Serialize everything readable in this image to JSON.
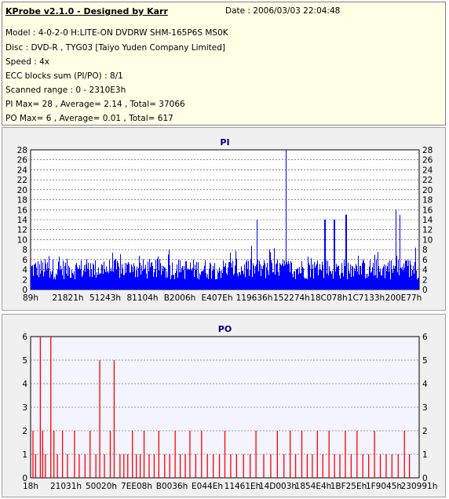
{
  "header": {
    "title": "KProbe v2.1.0 - Designed by Karr",
    "date": "Date : 2006/03/03 22:04:48",
    "model": "Model : 4-0-2-0 H:LITE-ON DVDRW SHM-165P6S MS0K",
    "disc": "Disc : DVD-R , TYG03 [Taiyo Yuden Company Limited]",
    "speed": "Speed : 4x",
    "ecc": "ECC blocks sum (PI/PO) : 8/1",
    "range": "Scanned range : 0 - 2310E3h",
    "pi_stats": "PI Max= 28 , Average= 2.14 , Total= 37066",
    "po_stats": "PO Max= 6 , Average= 0.01 , Total= 617"
  },
  "colors": {
    "pi_bars": "#0000ff",
    "po_bars": "#ff0000",
    "plot_bg": "#ffffff",
    "po_plot_bg": "#f4f4ff",
    "title": "#000080"
  },
  "chart_data": [
    {
      "type": "bar",
      "title": "PI",
      "ylim": [
        0,
        28
      ],
      "yticks": [
        0,
        2,
        4,
        6,
        8,
        10,
        12,
        14,
        16,
        18,
        20,
        22,
        24,
        26,
        28
      ],
      "xtick_labels": [
        "89h",
        "21821h",
        "51243h",
        "81104h",
        "B2006h",
        "E407Eh",
        "119636h",
        "152274h",
        "18C078h",
        "1C7133h",
        "200E77h"
      ],
      "grid": true,
      "peaks": [
        {
          "pos": 0.657,
          "value": 28
        },
        {
          "pos": 0.939,
          "value": 16
        },
        {
          "pos": 0.949,
          "value": 15
        },
        {
          "pos": 0.582,
          "value": 14
        },
        {
          "pos": 0.757,
          "value": 14
        },
        {
          "pos": 0.781,
          "value": 14
        },
        {
          "pos": 0.811,
          "value": 15
        }
      ],
      "baseline": {
        "typical_min": 2,
        "typical_max": 8
      }
    },
    {
      "type": "bar",
      "title": "PO",
      "ylim": [
        0,
        6
      ],
      "yticks": [
        0,
        1,
        2,
        3,
        4,
        5,
        6
      ],
      "xtick_labels": [
        "18h",
        "21031h",
        "50020h",
        "7EE08h",
        "B0036h",
        "E044Eh",
        "11461Eh",
        "14D003h",
        "1854E4h",
        "1BF25Eh",
        "1F9045h",
        "230991h"
      ],
      "grid": true,
      "bars": [
        {
          "pos": 0.006,
          "value": 2
        },
        {
          "pos": 0.013,
          "value": 1
        },
        {
          "pos": 0.025,
          "value": 6
        },
        {
          "pos": 0.031,
          "value": 2
        },
        {
          "pos": 0.038,
          "value": 1
        },
        {
          "pos": 0.052,
          "value": 6
        },
        {
          "pos": 0.06,
          "value": 2
        },
        {
          "pos": 0.069,
          "value": 1
        },
        {
          "pos": 0.082,
          "value": 2
        },
        {
          "pos": 0.095,
          "value": 1
        },
        {
          "pos": 0.113,
          "value": 2
        },
        {
          "pos": 0.125,
          "value": 1
        },
        {
          "pos": 0.14,
          "value": 1
        },
        {
          "pos": 0.153,
          "value": 2
        },
        {
          "pos": 0.168,
          "value": 1
        },
        {
          "pos": 0.178,
          "value": 5
        },
        {
          "pos": 0.19,
          "value": 1
        },
        {
          "pos": 0.205,
          "value": 2
        },
        {
          "pos": 0.215,
          "value": 5
        },
        {
          "pos": 0.23,
          "value": 1
        },
        {
          "pos": 0.24,
          "value": 1
        },
        {
          "pos": 0.25,
          "value": 1
        },
        {
          "pos": 0.262,
          "value": 2
        },
        {
          "pos": 0.272,
          "value": 1
        },
        {
          "pos": 0.282,
          "value": 1
        },
        {
          "pos": 0.292,
          "value": 2
        },
        {
          "pos": 0.305,
          "value": 1
        },
        {
          "pos": 0.318,
          "value": 1
        },
        {
          "pos": 0.33,
          "value": 2
        },
        {
          "pos": 0.345,
          "value": 1
        },
        {
          "pos": 0.358,
          "value": 1
        },
        {
          "pos": 0.372,
          "value": 2
        },
        {
          "pos": 0.385,
          "value": 1
        },
        {
          "pos": 0.398,
          "value": 1
        },
        {
          "pos": 0.41,
          "value": 2
        },
        {
          "pos": 0.425,
          "value": 1
        },
        {
          "pos": 0.44,
          "value": 2
        },
        {
          "pos": 0.455,
          "value": 1
        },
        {
          "pos": 0.47,
          "value": 1
        },
        {
          "pos": 0.486,
          "value": 1
        },
        {
          "pos": 0.5,
          "value": 2
        },
        {
          "pos": 0.515,
          "value": 1
        },
        {
          "pos": 0.53,
          "value": 1
        },
        {
          "pos": 0.548,
          "value": 1
        },
        {
          "pos": 0.565,
          "value": 1
        },
        {
          "pos": 0.58,
          "value": 2
        },
        {
          "pos": 0.6,
          "value": 1
        },
        {
          "pos": 0.618,
          "value": 1
        },
        {
          "pos": 0.635,
          "value": 2
        },
        {
          "pos": 0.652,
          "value": 1
        },
        {
          "pos": 0.668,
          "value": 2
        },
        {
          "pos": 0.682,
          "value": 1
        },
        {
          "pos": 0.698,
          "value": 2
        },
        {
          "pos": 0.712,
          "value": 1
        },
        {
          "pos": 0.725,
          "value": 1
        },
        {
          "pos": 0.738,
          "value": 2
        },
        {
          "pos": 0.752,
          "value": 1
        },
        {
          "pos": 0.768,
          "value": 2
        },
        {
          "pos": 0.782,
          "value": 1
        },
        {
          "pos": 0.796,
          "value": 1
        },
        {
          "pos": 0.81,
          "value": 2
        },
        {
          "pos": 0.825,
          "value": 1
        },
        {
          "pos": 0.84,
          "value": 2
        },
        {
          "pos": 0.855,
          "value": 1
        },
        {
          "pos": 0.87,
          "value": 1
        },
        {
          "pos": 0.885,
          "value": 2
        },
        {
          "pos": 0.9,
          "value": 1
        },
        {
          "pos": 0.915,
          "value": 1
        },
        {
          "pos": 0.93,
          "value": 1
        },
        {
          "pos": 0.946,
          "value": 1
        },
        {
          "pos": 0.962,
          "value": 2
        },
        {
          "pos": 0.975,
          "value": 1
        }
      ]
    }
  ]
}
